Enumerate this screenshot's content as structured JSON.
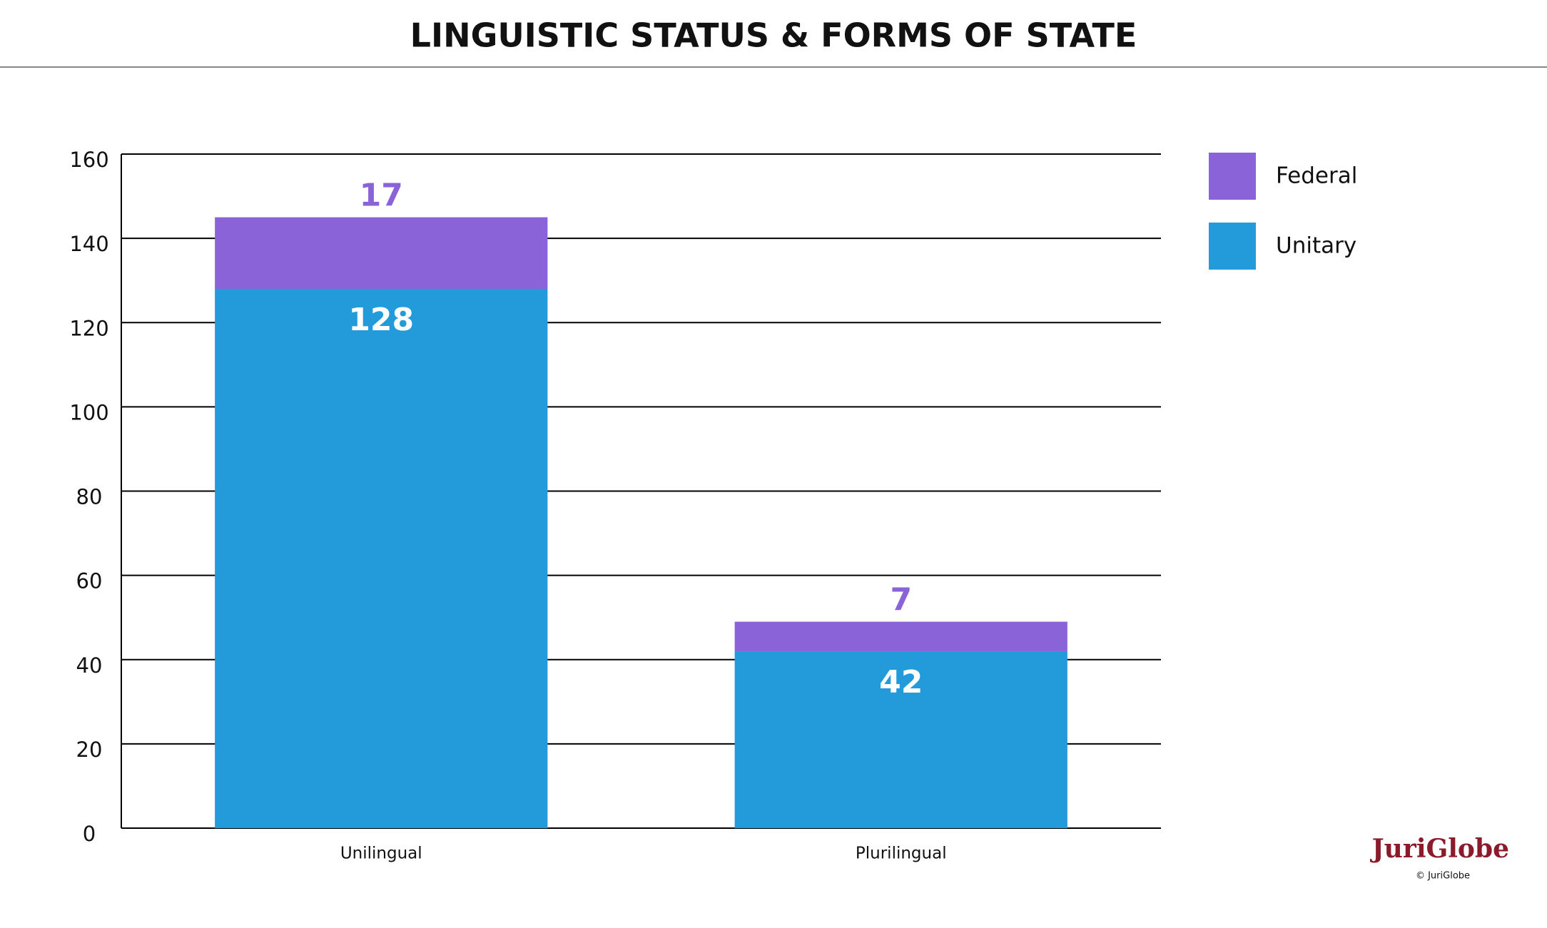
{
  "chart_data": {
    "type": "stacked_bar",
    "title": "LINGUISTIC STATUS & FORMS OF STATE",
    "categories": [
      "Unilingual",
      "Plurilingual"
    ],
    "series": [
      {
        "name": "Unitary",
        "color": "#239bdb",
        "values": [
          128,
          42
        ]
      },
      {
        "name": "Federal",
        "color": "#8a63d8",
        "values": [
          17,
          7
        ]
      }
    ],
    "ylim": [
      0,
      160
    ],
    "yticks": [
      0,
      20,
      40,
      60,
      80,
      100,
      120,
      140,
      160
    ],
    "grid": true,
    "legend": "top-right",
    "logo": "JuriGlobe",
    "copyright": "© JuriGlobe"
  }
}
